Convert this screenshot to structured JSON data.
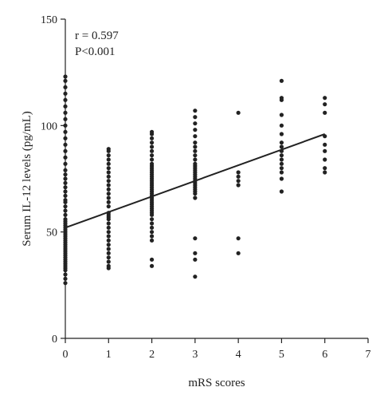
{
  "chart_data": {
    "type": "scatter",
    "xlabel": "mRS scores",
    "ylabel": "Serum IL-12 levels (pg/mL)",
    "xlim": [
      0,
      7
    ],
    "ylim": [
      0,
      150
    ],
    "xticks": [
      "0",
      "1",
      "2",
      "3",
      "4",
      "5",
      "6",
      "7"
    ],
    "yticks": [
      "0",
      "50",
      "100",
      "150"
    ],
    "grid": false,
    "annotations": [
      "r = 0.597",
      "P<0.001"
    ],
    "regression_line": {
      "x": [
        0,
        6
      ],
      "y": [
        52,
        96
      ]
    },
    "point_color": "#222222",
    "line_color": "#222222",
    "points": [
      [
        0,
        26
      ],
      [
        0,
        28
      ],
      [
        0,
        30
      ],
      [
        0,
        32
      ],
      [
        0,
        33
      ],
      [
        0,
        34
      ],
      [
        0,
        35
      ],
      [
        0,
        36
      ],
      [
        0,
        37
      ],
      [
        0,
        38
      ],
      [
        0,
        39
      ],
      [
        0,
        40
      ],
      [
        0,
        41
      ],
      [
        0,
        42
      ],
      [
        0,
        43
      ],
      [
        0,
        44
      ],
      [
        0,
        45
      ],
      [
        0,
        46
      ],
      [
        0,
        47
      ],
      [
        0,
        48
      ],
      [
        0,
        49
      ],
      [
        0,
        50
      ],
      [
        0,
        51
      ],
      [
        0,
        52
      ],
      [
        0,
        53
      ],
      [
        0,
        54
      ],
      [
        0,
        55
      ],
      [
        0,
        56
      ],
      [
        0,
        58
      ],
      [
        0,
        60
      ],
      [
        0,
        62
      ],
      [
        0,
        64
      ],
      [
        0,
        65
      ],
      [
        0,
        67
      ],
      [
        0,
        69
      ],
      [
        0,
        71
      ],
      [
        0,
        73
      ],
      [
        0,
        75
      ],
      [
        0,
        77
      ],
      [
        0,
        79
      ],
      [
        0,
        82
      ],
      [
        0,
        85
      ],
      [
        0,
        88
      ],
      [
        0,
        91
      ],
      [
        0,
        94
      ],
      [
        0,
        97
      ],
      [
        0,
        100
      ],
      [
        0,
        103
      ],
      [
        0,
        106
      ],
      [
        0,
        109
      ],
      [
        0,
        112
      ],
      [
        0,
        115
      ],
      [
        0,
        118
      ],
      [
        0,
        121
      ],
      [
        0,
        123
      ],
      [
        1,
        33
      ],
      [
        1,
        34
      ],
      [
        1,
        36
      ],
      [
        1,
        38
      ],
      [
        1,
        40
      ],
      [
        1,
        42
      ],
      [
        1,
        44
      ],
      [
        1,
        46
      ],
      [
        1,
        48
      ],
      [
        1,
        50
      ],
      [
        1,
        52
      ],
      [
        1,
        54
      ],
      [
        1,
        56
      ],
      [
        1,
        57
      ],
      [
        1,
        58
      ],
      [
        1,
        59
      ],
      [
        1,
        62
      ],
      [
        1,
        64
      ],
      [
        1,
        66
      ],
      [
        1,
        68
      ],
      [
        1,
        70
      ],
      [
        1,
        72
      ],
      [
        1,
        74
      ],
      [
        1,
        76
      ],
      [
        1,
        78
      ],
      [
        1,
        80
      ],
      [
        1,
        82
      ],
      [
        1,
        84
      ],
      [
        1,
        86
      ],
      [
        1,
        88
      ],
      [
        1,
        89
      ],
      [
        2,
        34
      ],
      [
        2,
        37
      ],
      [
        2,
        46
      ],
      [
        2,
        48
      ],
      [
        2,
        50
      ],
      [
        2,
        52
      ],
      [
        2,
        54
      ],
      [
        2,
        56
      ],
      [
        2,
        58
      ],
      [
        2,
        59
      ],
      [
        2,
        60
      ],
      [
        2,
        61
      ],
      [
        2,
        62
      ],
      [
        2,
        63
      ],
      [
        2,
        64
      ],
      [
        2,
        65
      ],
      [
        2,
        66
      ],
      [
        2,
        67
      ],
      [
        2,
        68
      ],
      [
        2,
        69
      ],
      [
        2,
        70
      ],
      [
        2,
        71
      ],
      [
        2,
        72
      ],
      [
        2,
        73
      ],
      [
        2,
        74
      ],
      [
        2,
        75
      ],
      [
        2,
        76
      ],
      [
        2,
        77
      ],
      [
        2,
        78
      ],
      [
        2,
        79
      ],
      [
        2,
        80
      ],
      [
        2,
        81
      ],
      [
        2,
        82
      ],
      [
        2,
        84
      ],
      [
        2,
        86
      ],
      [
        2,
        88
      ],
      [
        2,
        90
      ],
      [
        2,
        92
      ],
      [
        2,
        94
      ],
      [
        2,
        96
      ],
      [
        2,
        97
      ],
      [
        3,
        29
      ],
      [
        3,
        37
      ],
      [
        3,
        40
      ],
      [
        3,
        47
      ],
      [
        3,
        66
      ],
      [
        3,
        68
      ],
      [
        3,
        69
      ],
      [
        3,
        70
      ],
      [
        3,
        71
      ],
      [
        3,
        72
      ],
      [
        3,
        73
      ],
      [
        3,
        74
      ],
      [
        3,
        75
      ],
      [
        3,
        76
      ],
      [
        3,
        77
      ],
      [
        3,
        78
      ],
      [
        3,
        79
      ],
      [
        3,
        80
      ],
      [
        3,
        81
      ],
      [
        3,
        82
      ],
      [
        3,
        84
      ],
      [
        3,
        86
      ],
      [
        3,
        88
      ],
      [
        3,
        90
      ],
      [
        3,
        92
      ],
      [
        3,
        95
      ],
      [
        3,
        98
      ],
      [
        3,
        101
      ],
      [
        3,
        104
      ],
      [
        3,
        107
      ],
      [
        4,
        40
      ],
      [
        4,
        47
      ],
      [
        4,
        72
      ],
      [
        4,
        74
      ],
      [
        4,
        76
      ],
      [
        4,
        78
      ],
      [
        4,
        106
      ],
      [
        5,
        69
      ],
      [
        5,
        75
      ],
      [
        5,
        78
      ],
      [
        5,
        80
      ],
      [
        5,
        82
      ],
      [
        5,
        84
      ],
      [
        5,
        86
      ],
      [
        5,
        88
      ],
      [
        5,
        90
      ],
      [
        5,
        92
      ],
      [
        5,
        96
      ],
      [
        5,
        100
      ],
      [
        5,
        105
      ],
      [
        5,
        112
      ],
      [
        5,
        113
      ],
      [
        5,
        121
      ],
      [
        6,
        78
      ],
      [
        6,
        80
      ],
      [
        6,
        84
      ],
      [
        6,
        88
      ],
      [
        6,
        91
      ],
      [
        6,
        95
      ],
      [
        6,
        106
      ],
      [
        6,
        110
      ],
      [
        6,
        113
      ]
    ]
  }
}
